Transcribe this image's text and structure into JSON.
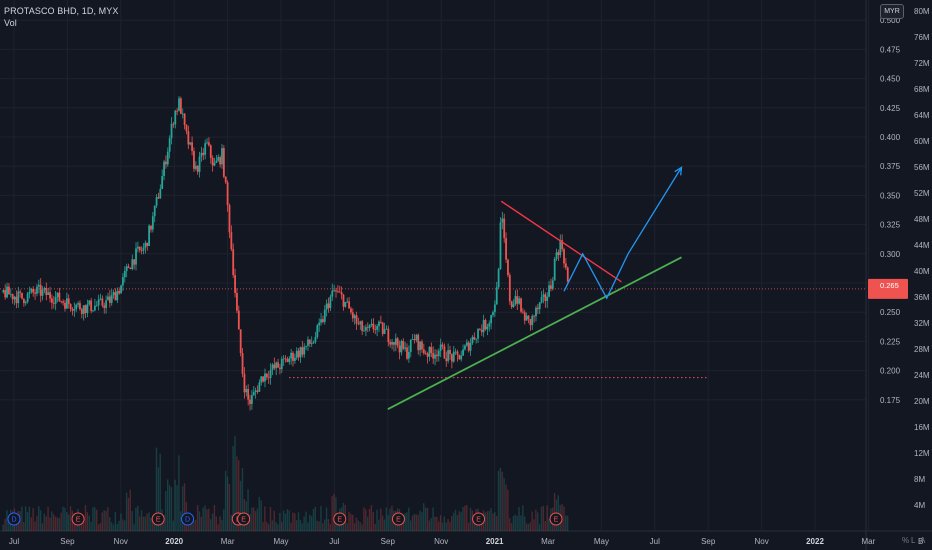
{
  "header": {
    "symbol_line": "PROTASCO BHD, 1D, MYX",
    "volume_label": "Vol"
  },
  "currency": "MYR",
  "controls": {
    "percent": "%",
    "log": "L",
    "auto": "A",
    "bottom_left": "B"
  },
  "colors": {
    "background": "#131722",
    "up": "#26a69a",
    "down": "#ef5350",
    "resistance_line": "#f23645",
    "support_line": "#4caf50",
    "projection": "#2196f3",
    "price_line": "#ef5350",
    "grid": "#1e222d"
  },
  "price_tag": {
    "value": "0.265",
    "sub": ""
  },
  "chart_data": {
    "type": "candlestick",
    "title": "PROTASCO BHD, 1D, MYX",
    "price_axis": {
      "ticks": [
        "0.500",
        "0.475",
        "0.450",
        "0.425",
        "0.400",
        "0.375",
        "0.350",
        "0.325",
        "0.300",
        "0.275",
        "0.250",
        "0.225",
        "0.200",
        "0.175"
      ],
      "range": [
        0.167,
        0.522
      ]
    },
    "volume_axis": {
      "ticks": [
        "80M",
        "76M",
        "72M",
        "68M",
        "64M",
        "60M",
        "56M",
        "52M",
        "48M",
        "44M",
        "40M",
        "36M",
        "32M",
        "28M",
        "24M",
        "20M",
        "16M",
        "12M",
        "8M",
        "4M"
      ],
      "range": [
        0,
        82
      ]
    },
    "time_axis": {
      "labels": [
        "Jul",
        "Sep",
        "Nov",
        "2020",
        "Mar",
        "May",
        "Jul",
        "Sep",
        "Nov",
        "2021",
        "Mar",
        "May",
        "Jul",
        "Sep",
        "Nov",
        "2022",
        "Mar"
      ],
      "bold": [
        "2020",
        "2021",
        "2022"
      ],
      "month_index": [
        0,
        2,
        4,
        6,
        8,
        10,
        12,
        14,
        16,
        18,
        20,
        22,
        24,
        26,
        28,
        30,
        32
      ]
    },
    "last_month_index": 20.8,
    "price_path": [
      [
        -0.4,
        0.267
      ],
      [
        0.3,
        0.262
      ],
      [
        0.9,
        0.268
      ],
      [
        1.5,
        0.263
      ],
      [
        2.0,
        0.258
      ],
      [
        2.6,
        0.254
      ],
      [
        3.2,
        0.256
      ],
      [
        3.6,
        0.26
      ],
      [
        4.0,
        0.272
      ],
      [
        4.3,
        0.29
      ],
      [
        4.6,
        0.3
      ],
      [
        4.9,
        0.305
      ],
      [
        5.2,
        0.33
      ],
      [
        5.5,
        0.36
      ],
      [
        5.8,
        0.395
      ],
      [
        6.0,
        0.42
      ],
      [
        6.2,
        0.43
      ],
      [
        6.4,
        0.405
      ],
      [
        6.6,
        0.39
      ],
      [
        6.8,
        0.372
      ],
      [
        7.0,
        0.38
      ],
      [
        7.2,
        0.395
      ],
      [
        7.5,
        0.375
      ],
      [
        7.8,
        0.385
      ],
      [
        8.0,
        0.34
      ],
      [
        8.2,
        0.29
      ],
      [
        8.4,
        0.235
      ],
      [
        8.6,
        0.19
      ],
      [
        8.8,
        0.172
      ],
      [
        9.0,
        0.18
      ],
      [
        9.3,
        0.195
      ],
      [
        9.6,
        0.2
      ],
      [
        10.0,
        0.205
      ],
      [
        10.4,
        0.212
      ],
      [
        10.8,
        0.218
      ],
      [
        11.2,
        0.225
      ],
      [
        11.5,
        0.24
      ],
      [
        11.8,
        0.26
      ],
      [
        12.0,
        0.268
      ],
      [
        12.3,
        0.262
      ],
      [
        12.6,
        0.25
      ],
      [
        12.9,
        0.238
      ],
      [
        13.2,
        0.232
      ],
      [
        13.5,
        0.238
      ],
      [
        13.8,
        0.235
      ],
      [
        14.1,
        0.228
      ],
      [
        14.4,
        0.222
      ],
      [
        14.7,
        0.215
      ],
      [
        15.0,
        0.228
      ],
      [
        15.3,
        0.218
      ],
      [
        15.6,
        0.214
      ],
      [
        15.9,
        0.218
      ],
      [
        16.2,
        0.214
      ],
      [
        16.5,
        0.21
      ],
      [
        16.8,
        0.215
      ],
      [
        17.1,
        0.225
      ],
      [
        17.4,
        0.235
      ],
      [
        17.7,
        0.24
      ],
      [
        17.9,
        0.248
      ],
      [
        18.1,
        0.27
      ],
      [
        18.25,
        0.335
      ],
      [
        18.4,
        0.3
      ],
      [
        18.6,
        0.255
      ],
      [
        18.8,
        0.265
      ],
      [
        19.0,
        0.25
      ],
      [
        19.3,
        0.24
      ],
      [
        19.6,
        0.252
      ],
      [
        19.9,
        0.262
      ],
      [
        20.1,
        0.272
      ],
      [
        20.3,
        0.3
      ],
      [
        20.5,
        0.31
      ],
      [
        20.65,
        0.29
      ],
      [
        20.8,
        0.265
      ]
    ],
    "volume_bars": [
      {
        "m": 4.3,
        "v": 6
      },
      {
        "m": 5.4,
        "v": 14
      },
      {
        "m": 5.8,
        "v": 9
      },
      {
        "m": 6.1,
        "v": 11
      },
      {
        "m": 6.4,
        "v": 7
      },
      {
        "m": 7.2,
        "v": 5
      },
      {
        "m": 8.0,
        "v": 9
      },
      {
        "m": 8.3,
        "v": 14
      },
      {
        "m": 8.5,
        "v": 10
      },
      {
        "m": 8.7,
        "v": 7
      },
      {
        "m": 9.2,
        "v": 5
      },
      {
        "m": 12.0,
        "v": 8
      },
      {
        "m": 12.3,
        "v": 4
      },
      {
        "m": 14.2,
        "v": 3
      },
      {
        "m": 15.4,
        "v": 4
      },
      {
        "m": 18.25,
        "v": 10
      },
      {
        "m": 18.4,
        "v": 7
      },
      {
        "m": 20.3,
        "v": 6
      },
      {
        "m": 20.5,
        "v": 4
      }
    ],
    "annotations": {
      "resistance": [
        [
          18.25,
          0.345
        ],
        [
          22.75,
          0.276
        ]
      ],
      "support": [
        [
          14.0,
          0.167
        ],
        [
          25.0,
          0.297
        ]
      ],
      "flat_support": {
        "from": 10.3,
        "to": 26.0,
        "y": 0.194
      },
      "projection": [
        [
          20.6,
          0.268
        ],
        [
          21.3,
          0.3
        ],
        [
          22.2,
          0.262
        ],
        [
          23.0,
          0.3
        ],
        [
          25.0,
          0.374
        ]
      ],
      "last_price": 0.27
    },
    "events": [
      {
        "label": "D",
        "m": 0.0,
        "color": "#2962ff"
      },
      {
        "label": "E",
        "m": 2.4,
        "color": "#ef5350"
      },
      {
        "label": "E",
        "m": 5.4,
        "color": "#ef5350"
      },
      {
        "label": "D",
        "m": 6.5,
        "color": "#2962ff"
      },
      {
        "label": "E",
        "m": 8.4,
        "color": "#ef5350"
      },
      {
        "label": "E",
        "m": 8.6,
        "color": "#ef5350"
      },
      {
        "label": "E",
        "m": 12.2,
        "color": "#ef5350"
      },
      {
        "label": "E",
        "m": 14.4,
        "color": "#ef5350"
      },
      {
        "label": "E",
        "m": 17.4,
        "color": "#ef5350"
      },
      {
        "label": "E",
        "m": 20.3,
        "color": "#ef5350"
      }
    ]
  }
}
